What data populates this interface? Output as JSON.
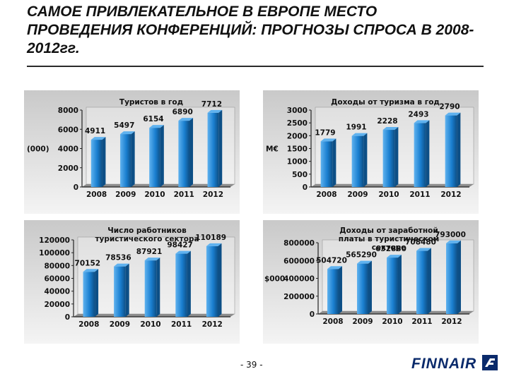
{
  "page": {
    "title": "САМОЕ ПРИВЛЕКАТЕЛЬНОЕ В ЕВРОПЕ МЕСТО ПРОВЕДЕНИЯ КОНФЕРЕНЦИЙ: ПРОГНОЗЫ СПРОСА В 2008-2012гг.",
    "page_number": "- 39 -",
    "brand": "FINNAIR",
    "colors": {
      "bar": "#1a7fd0",
      "bar_dark": "#0d4f86",
      "bar_light": "#5fb2ef",
      "brand": "#0a2a6b"
    }
  },
  "chart_data": [
    {
      "type": "bar",
      "title": "Туристов в год",
      "ylabel": "(000)",
      "categories": [
        "2008",
        "2009",
        "2010",
        "2011",
        "2012"
      ],
      "values": [
        4911,
        5497,
        6154,
        6890,
        7712
      ],
      "value_labels": [
        "4911",
        "5497",
        "6154",
        "6890",
        "7712"
      ],
      "ylim": [
        0,
        8000
      ],
      "yticks": [
        0,
        2000,
        4000,
        6000,
        8000
      ],
      "ytick_labels": [
        "0",
        "2000",
        "4000",
        "6000",
        "8000"
      ],
      "grid": false,
      "legend": "none"
    },
    {
      "type": "bar",
      "title": "Доходы от туризма в год",
      "ylabel": "M€",
      "categories": [
        "2008",
        "2009",
        "2010",
        "2011",
        "2012"
      ],
      "values": [
        1779,
        1991,
        2228,
        2493,
        2790
      ],
      "value_labels": [
        "1779",
        "1991",
        "2228",
        "2493",
        "2790"
      ],
      "ylim": [
        0,
        3000
      ],
      "yticks": [
        0,
        500,
        1000,
        1500,
        2000,
        2500,
        3000
      ],
      "ytick_labels": [
        "0",
        "500",
        "1000",
        "1500",
        "2000",
        "2500",
        "3000"
      ],
      "grid": false,
      "legend": "none"
    },
    {
      "type": "bar",
      "title": "Число работников туристического сектора",
      "ylabel": "",
      "categories": [
        "2008",
        "2009",
        "2010",
        "2011",
        "2012"
      ],
      "values": [
        70152,
        78536,
        87921,
        98427,
        110189
      ],
      "value_labels": [
        "70152",
        "78536",
        "87921",
        "98427",
        "110189"
      ],
      "ylim": [
        0,
        120000
      ],
      "yticks": [
        0,
        20000,
        40000,
        60000,
        80000,
        100000,
        120000
      ],
      "ytick_labels": [
        "0",
        "20000",
        "40000",
        "60000",
        "80000",
        "100000",
        "120000"
      ],
      "grid": false,
      "legend": "none"
    },
    {
      "type": "bar",
      "title": "Доходы от заработной платы в туристическом секторе",
      "ylabel": "$000",
      "categories": [
        "2008",
        "2009",
        "2010",
        "2011",
        "2012"
      ],
      "values": [
        504720,
        565290,
        632880,
        708480,
        793000
      ],
      "value_labels": [
        "504720",
        "565290",
        "632880",
        "708480",
        "793000"
      ],
      "ylim": [
        0,
        800000
      ],
      "yticks": [
        0,
        200000,
        400000,
        600000,
        800000
      ],
      "ytick_labels": [
        "0",
        "200000",
        "400000",
        "600000",
        "800000"
      ],
      "grid": false,
      "legend": "none"
    }
  ]
}
